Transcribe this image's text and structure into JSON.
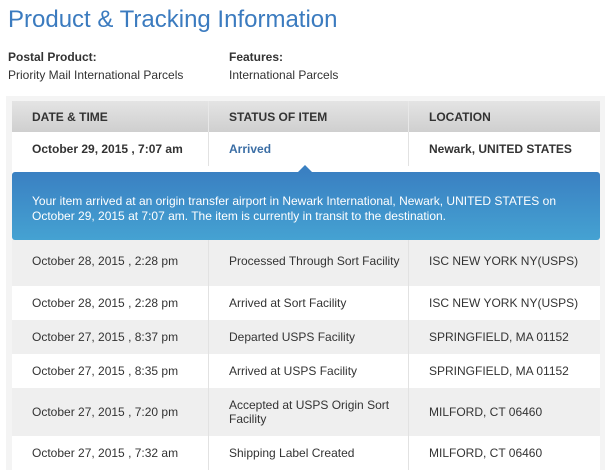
{
  "title": "Product & Tracking Information",
  "postal_product": {
    "label": "Postal Product:",
    "value": "Priority Mail International Parcels"
  },
  "features": {
    "label": "Features:",
    "value": "International Parcels"
  },
  "table": {
    "headers": [
      "DATE & TIME",
      "STATUS OF ITEM",
      "LOCATION"
    ],
    "latest": {
      "date": "October 29, 2015 , 7:07 am",
      "status": "Arrived",
      "location": "Newark, UNITED STATES"
    },
    "detail": "Your item arrived at an origin transfer airport in Newark International, Newark, UNITED STATES on October 29, 2015 at 7:07 am. The item is currently in transit to the destination.",
    "rows": [
      {
        "date": "October 28, 2015 , 2:28 pm",
        "status": "Processed Through Sort Facility",
        "location": "ISC NEW YORK NY(USPS)"
      },
      {
        "date": "October 28, 2015 , 2:28 pm",
        "status": "Arrived at Sort Facility",
        "location": "ISC NEW YORK NY(USPS)"
      },
      {
        "date": "October 27, 2015 , 8:37 pm",
        "status": "Departed USPS Facility",
        "location": "SPRINGFIELD, MA 01152"
      },
      {
        "date": "October 27, 2015 , 8:35 pm",
        "status": "Arrived at USPS Facility",
        "location": "SPRINGFIELD, MA 01152"
      },
      {
        "date": "October 27, 2015 , 7:20 pm",
        "status": "Accepted at USPS Origin Sort Facility",
        "location": "MILFORD, CT 06460"
      },
      {
        "date": "October 27, 2015 , 7:32 am",
        "status": "Shipping Label Created",
        "location": "MILFORD, CT 06460"
      }
    ]
  }
}
